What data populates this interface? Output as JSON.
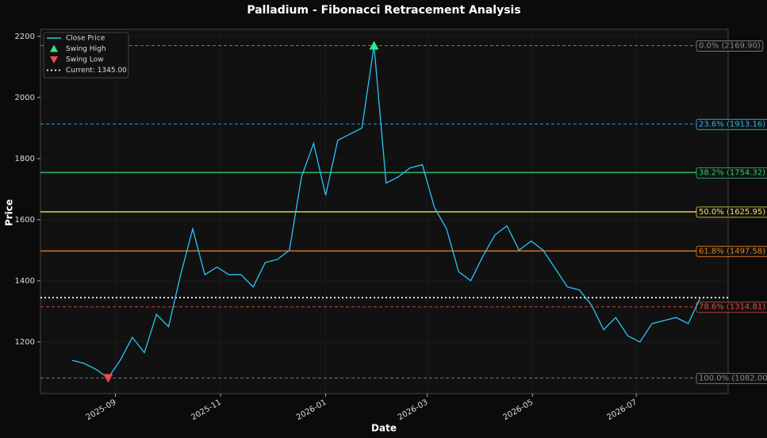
{
  "chart_data": {
    "type": "line",
    "title": "Palladium - Fibonacci Retracement Analysis",
    "x_label": "Date",
    "y_label": "Price",
    "ylim": [
      1031,
      2223
    ],
    "yticks": [
      1200,
      1400,
      1600,
      1800,
      2000,
      2200
    ],
    "xlim": [
      -2.6,
      54.3
    ],
    "xticks": [
      {
        "value": 3.6,
        "label": "2025-09"
      },
      {
        "value": 12.3,
        "label": "2025-11"
      },
      {
        "value": 21.0,
        "label": "2026-01"
      },
      {
        "value": 29.4,
        "label": "2026-03"
      },
      {
        "value": 38.1,
        "label": "2026-05"
      },
      {
        "value": 46.7,
        "label": "2026-07"
      }
    ],
    "series": [
      {
        "name": "Close Price",
        "color": "#29c5f6",
        "values": [
          1140,
          1130,
          1110,
          1082,
          1140,
          1215,
          1165,
          1290,
          1250,
          1420,
          1570,
          1420,
          1445,
          1420,
          1420,
          1380,
          1460,
          1470,
          1500,
          1740,
          1850,
          1680,
          1860,
          1880,
          1900,
          2169.9,
          1720,
          1740,
          1770,
          1780,
          1640,
          1570,
          1430,
          1400,
          1480,
          1550,
          1580,
          1500,
          1530,
          1500,
          1440,
          1380,
          1370,
          1320,
          1240,
          1280,
          1220,
          1200,
          1260,
          1270,
          1280,
          1260,
          1345
        ]
      },
      {
        "name": "Swing High",
        "color": "#2ee88a",
        "marker": "up",
        "x": [
          25
        ],
        "values": [
          2169.9
        ]
      },
      {
        "name": "Swing Low",
        "color": "#f04a4a",
        "marker": "down",
        "x": [
          3
        ],
        "values": [
          1082
        ]
      }
    ],
    "current": {
      "name": "Current: 1345.00",
      "value": 1345,
      "color": "#ffffff"
    },
    "levels": [
      {
        "label": "0.0% (2169.90)",
        "value": 2169.9,
        "color": "#888888",
        "dash": true
      },
      {
        "label": "23.6% (1913.16)",
        "value": 1913.16,
        "color": "#29b6f6",
        "dash": true
      },
      {
        "label": "38.2% (1754.32)",
        "value": 1754.32,
        "color": "#2ecc71",
        "dash": false
      },
      {
        "label": "50.0% (1625.95)",
        "value": 1625.95,
        "color": "#f1e05a",
        "dash": false
      },
      {
        "label": "61.8% (1497.58)",
        "value": 1497.58,
        "color": "#e67e22",
        "dash": false
      },
      {
        "label": "78.6% (1314.81)",
        "value": 1314.81,
        "color": "#e74c3c",
        "dash": true
      },
      {
        "label": "100.0% (1082.00)",
        "value": 1082,
        "color": "#888888",
        "dash": true
      }
    ]
  }
}
